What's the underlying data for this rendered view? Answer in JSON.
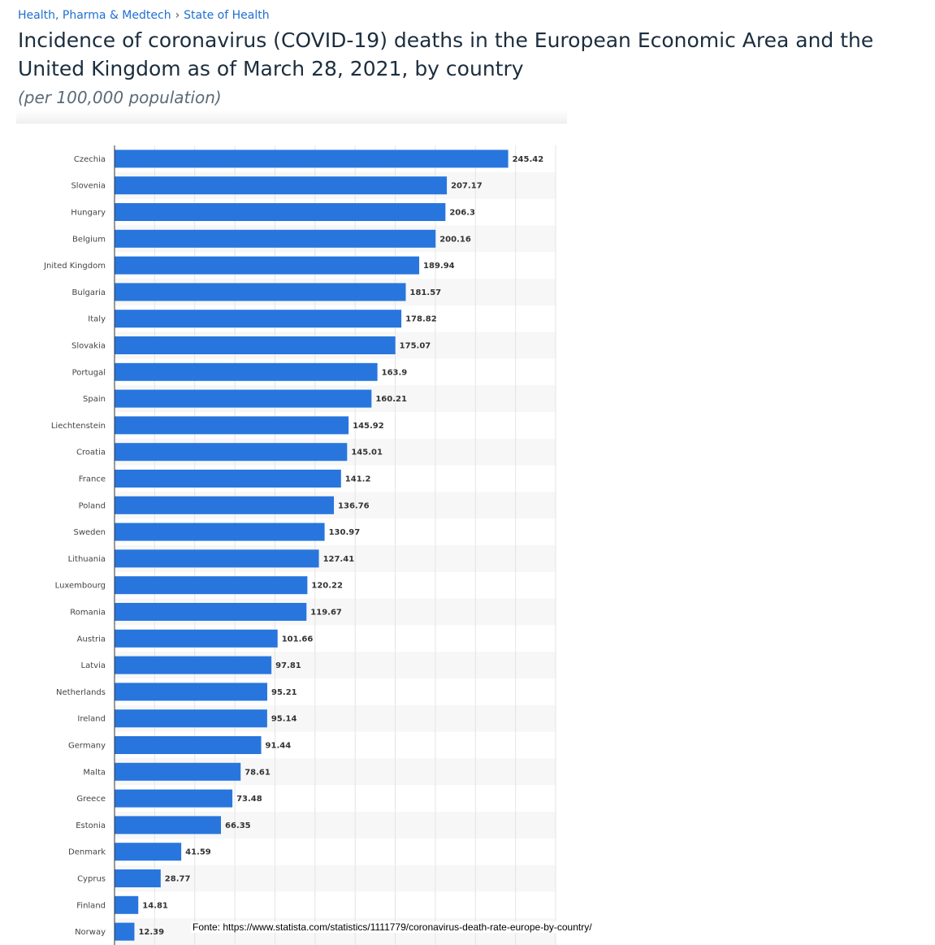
{
  "breadcrumb": {
    "items": [
      "Health, Pharma & Medtech",
      "State of Health"
    ],
    "separator": "›"
  },
  "header": {
    "title": "Incidence of coronavirus (COVID-19) deaths in the European Economic Area and the United Kingdom as of March 28, 2021, by country",
    "subtitle": "(per 100,000 population)"
  },
  "source_note": "Fonte: https://www.statista.com/statistics/1111779/coronavirus-death-rate-europe-by-country/",
  "colors": {
    "bar": "#2876dd",
    "link": "#1f6fd1",
    "title": "#1c2e3e",
    "stripe": "#f7f7f7"
  },
  "chart_data": {
    "type": "bar",
    "orientation": "horizontal",
    "title": "Incidence of coronavirus (COVID-19) deaths in the European Economic Area and the United Kingdom as of March 28, 2021, by country",
    "subtitle": "(per 100,000 population)",
    "categories": [
      "Czechia",
      "Slovenia",
      "Hungary",
      "Belgium",
      "Jnited Kingdom",
      "Bulgaria",
      "Italy",
      "Slovakia",
      "Portugal",
      "Spain",
      "Liechtenstein",
      "Croatia",
      "France",
      "Poland",
      "Sweden",
      "Lithuania",
      "Luxembourg",
      "Romania",
      "Austria",
      "Latvia",
      "Netherlands",
      "Ireland",
      "Germany",
      "Malta",
      "Greece",
      "Estonia",
      "Denmark",
      "Cyprus",
      "Finland",
      "Norway"
    ],
    "values": [
      245.42,
      207.17,
      206.3,
      200.16,
      189.94,
      181.57,
      178.82,
      175.07,
      163.9,
      160.21,
      145.92,
      145.01,
      141.2,
      136.76,
      130.97,
      127.41,
      120.22,
      119.67,
      101.66,
      97.81,
      95.21,
      95.14,
      91.44,
      78.61,
      73.48,
      66.35,
      41.59,
      28.77,
      14.81,
      12.39
    ],
    "value_labels": [
      "245.42",
      "207.17",
      "206.3",
      "200.16",
      "189.94",
      "181.57",
      "178.82",
      "175.07",
      "163.9",
      "160.21",
      "145.92",
      "145.01",
      "141.2",
      "136.76",
      "130.97",
      "127.41",
      "120.22",
      "119.67",
      "101.66",
      "97.81",
      "95.21",
      "95.14",
      "91.44",
      "78.61",
      "73.48",
      "66.35",
      "41.59",
      "28.77",
      "14.81",
      "12.39"
    ],
    "xlim": [
      0,
      275
    ],
    "grid": true,
    "x_tick_labels_visible": false
  }
}
